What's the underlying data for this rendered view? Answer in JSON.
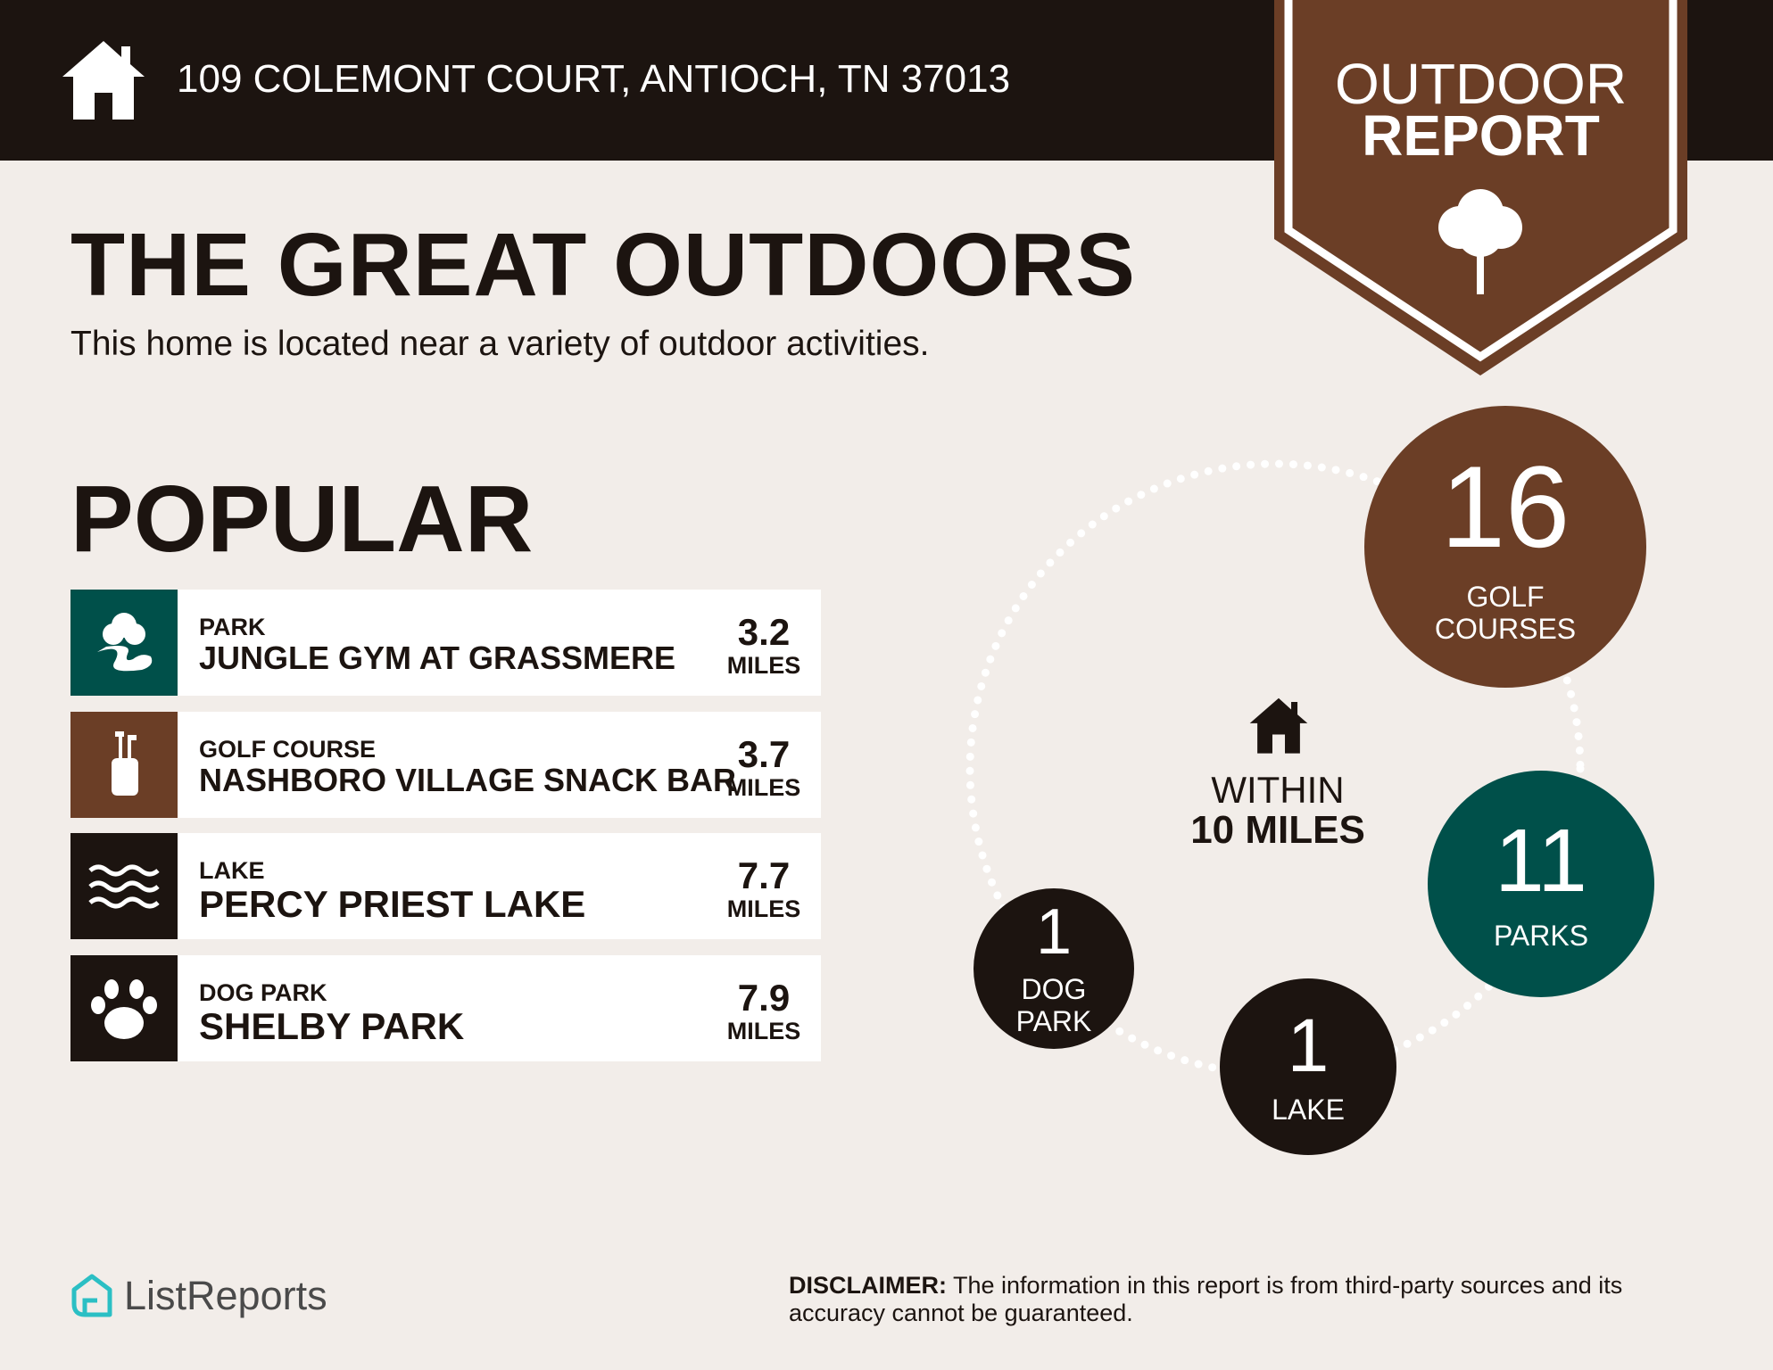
{
  "header": {
    "address": "109 COLEMONT COURT, ANTIOCH, TN 37013"
  },
  "badge": {
    "line1": "OUTDOOR",
    "line2": "REPORT"
  },
  "title": "THE GREAT OUTDOORS",
  "subtitle": "This home is located near a variety of outdoor activities.",
  "popular": {
    "heading": "POPULAR",
    "items": [
      {
        "category": "PARK",
        "name": "JUNGLE GYM AT GRASSMERE",
        "distance": 3.2,
        "unit": "MILES"
      },
      {
        "category": "GOLF COURSE",
        "name": "NASHBORO VILLAGE SNACK BAR",
        "distance": 3.7,
        "unit": "MILES"
      },
      {
        "category": "LAKE",
        "name": "PERCY PRIEST LAKE",
        "distance": 7.7,
        "unit": "MILES"
      },
      {
        "category": "DOG PARK",
        "name": "SHELBY PARK",
        "distance": 7.9,
        "unit": "MILES"
      }
    ]
  },
  "summary": {
    "center_line1": "WITHIN",
    "center_line2": "10 MILES",
    "counts": [
      {
        "count": 16,
        "label_lines": [
          "GOLF",
          "COURSES"
        ]
      },
      {
        "count": 11,
        "label_lines": [
          "PARKS"
        ]
      },
      {
        "count": 1,
        "label_lines": [
          "LAKE"
        ]
      },
      {
        "count": 1,
        "label_lines": [
          "DOG",
          "PARK"
        ]
      }
    ]
  },
  "footer": {
    "brand": "ListReports",
    "disclaimer_label": "DISCLAIMER:",
    "disclaimer_text": "The information in this report is from third-party sources and its accuracy cannot be guaranteed."
  }
}
